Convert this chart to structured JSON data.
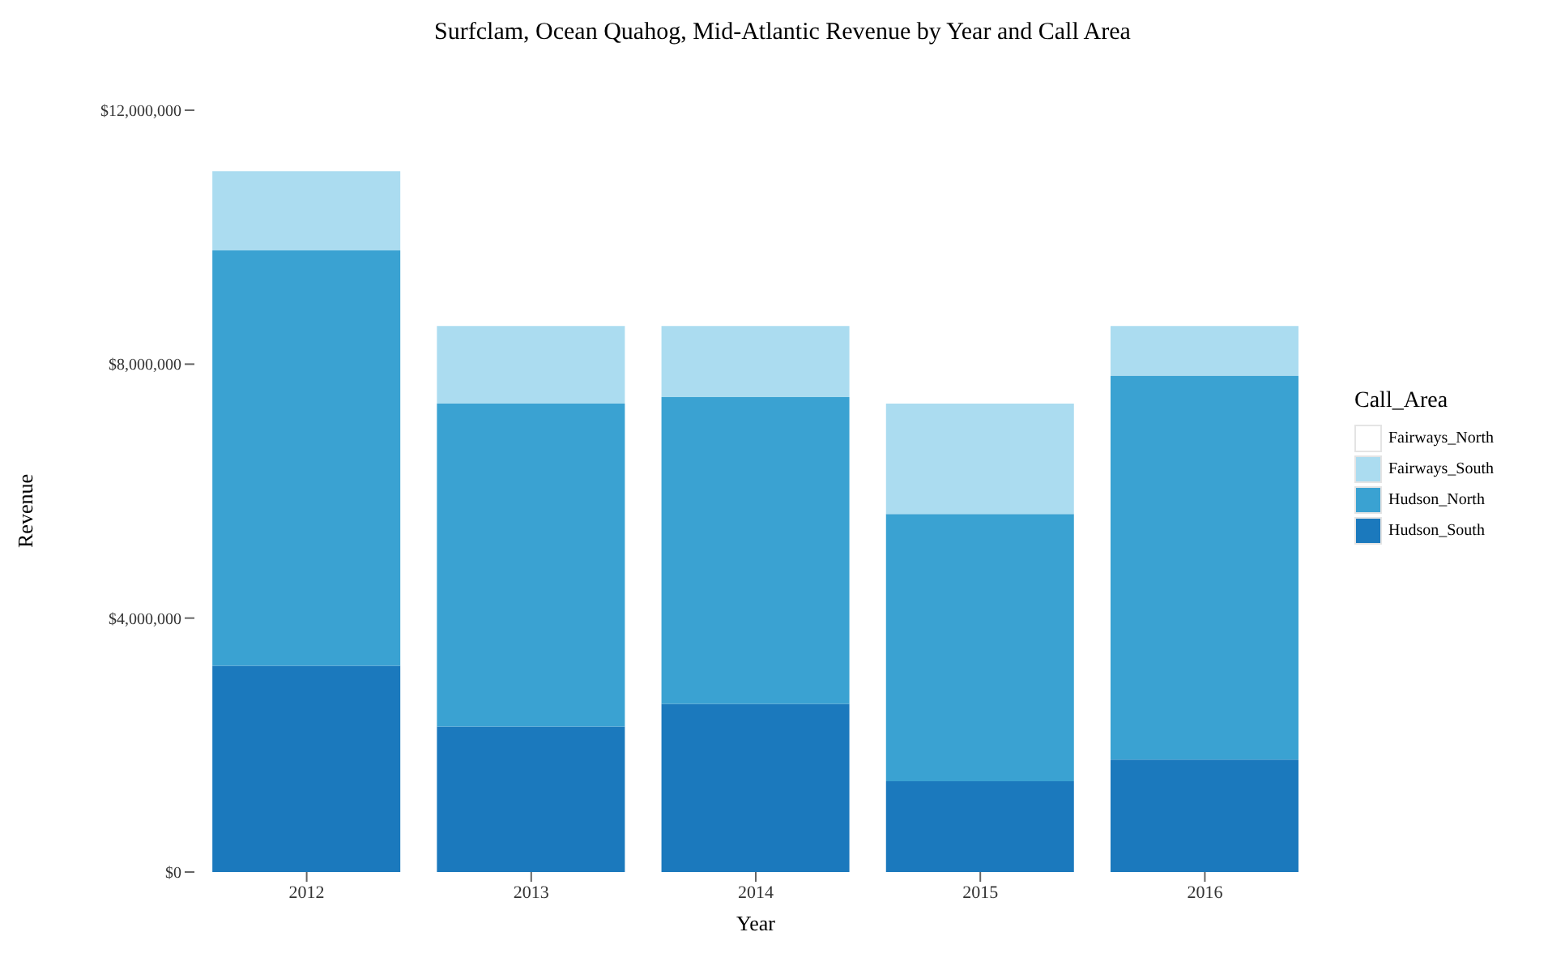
{
  "chart_data": {
    "type": "bar",
    "title": "Surfclam, Ocean Quahog, Mid-Atlantic Revenue by Year and Call Area",
    "xlabel": "Year",
    "ylabel": "Revenue",
    "legend_title": "Call_Area",
    "categories": [
      "2012",
      "2013",
      "2014",
      "2015",
      "2016"
    ],
    "stacked": true,
    "legend": "right",
    "grid": false,
    "ylim": [
      0,
      12000000
    ],
    "yticks": [
      {
        "value": 0,
        "label": "$0"
      },
      {
        "value": 4000000,
        "label": "$4,000,000"
      },
      {
        "value": 8000000,
        "label": "$8,000,000"
      },
      {
        "value": 12000000,
        "label": "$12,000,000"
      }
    ],
    "series": [
      {
        "name": "Hudson_South",
        "color": "#1b79bd",
        "values": [
          3250000,
          2290000,
          2650000,
          1430000,
          1770000
        ]
      },
      {
        "name": "Hudson_North",
        "color": "#3aa2d2",
        "values": [
          6540000,
          5090000,
          4830000,
          4210000,
          6050000
        ]
      },
      {
        "name": "Fairways_South",
        "color": "#abdcf0",
        "values": [
          1250000,
          1220000,
          1120000,
          1740000,
          780000
        ]
      },
      {
        "name": "Fairways_North",
        "color": "#ffffff",
        "values": [
          0,
          0,
          0,
          0,
          0
        ]
      }
    ]
  }
}
